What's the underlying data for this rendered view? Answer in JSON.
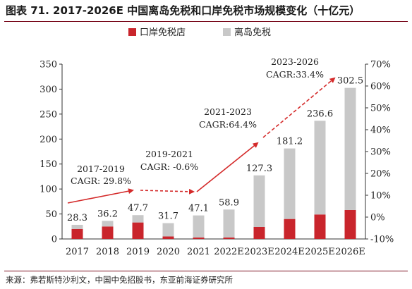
{
  "title": "图表 71. 2017-2026E 中国离岛免税和口岸免税市场规模变化（十亿元）",
  "source": "来源：弗若斯特沙利文，中国中免招股书，东亚前海证券研究所",
  "colors": {
    "port": "#c9252c",
    "island": "#c8c8c8",
    "arrow": "#d42a2a",
    "frame": "#7a0c1e"
  },
  "chart_data": {
    "type": "bar",
    "stacked": true,
    "categories": [
      "2017",
      "2018",
      "2019",
      "2020",
      "2021",
      "2022E",
      "2023E",
      "2024E",
      "2025E",
      "2026E"
    ],
    "series": [
      {
        "name": "口岸免税店",
        "values": [
          20,
          25,
          33,
          5,
          3,
          3,
          24,
          40,
          49,
          58
        ]
      },
      {
        "name": "离岛免税",
        "values": [
          8.3,
          11.2,
          14.7,
          26.7,
          44.1,
          55.9,
          103.3,
          141.2,
          187.6,
          244.5
        ]
      }
    ],
    "totals": [
      "28.3",
      "36.2",
      "47.7",
      "31.7",
      "47.1",
      "58.9",
      "127.3",
      "181.2",
      "236.6",
      "302.5"
    ],
    "totals_numeric": [
      28.3,
      36.2,
      47.7,
      31.7,
      47.1,
      58.9,
      127.3,
      181.2,
      236.6,
      302.5
    ],
    "y_left": {
      "lim": [
        0,
        350
      ],
      "ticks": [
        "0",
        "50",
        "100",
        "150",
        "200",
        "250",
        "300",
        "350"
      ],
      "values": [
        0,
        50,
        100,
        150,
        200,
        250,
        300,
        350
      ]
    },
    "y_right": {
      "lim": [
        -10,
        70
      ],
      "ticks": [
        "-10%",
        "0%",
        "10%",
        "20%",
        "30%",
        "40%",
        "50%",
        "60%",
        "70%"
      ]
    },
    "legend_position": "top",
    "annotations": [
      {
        "period": "2017-2019",
        "cagr": "CAGR: 29.8%"
      },
      {
        "period": "2019-2021",
        "cagr": "CAGR: -0.6%"
      },
      {
        "period": "2021-2023",
        "cagr": "CAGR:64.4%"
      },
      {
        "period": "2023-2026",
        "cagr": "CAGR:33.4%"
      }
    ]
  }
}
